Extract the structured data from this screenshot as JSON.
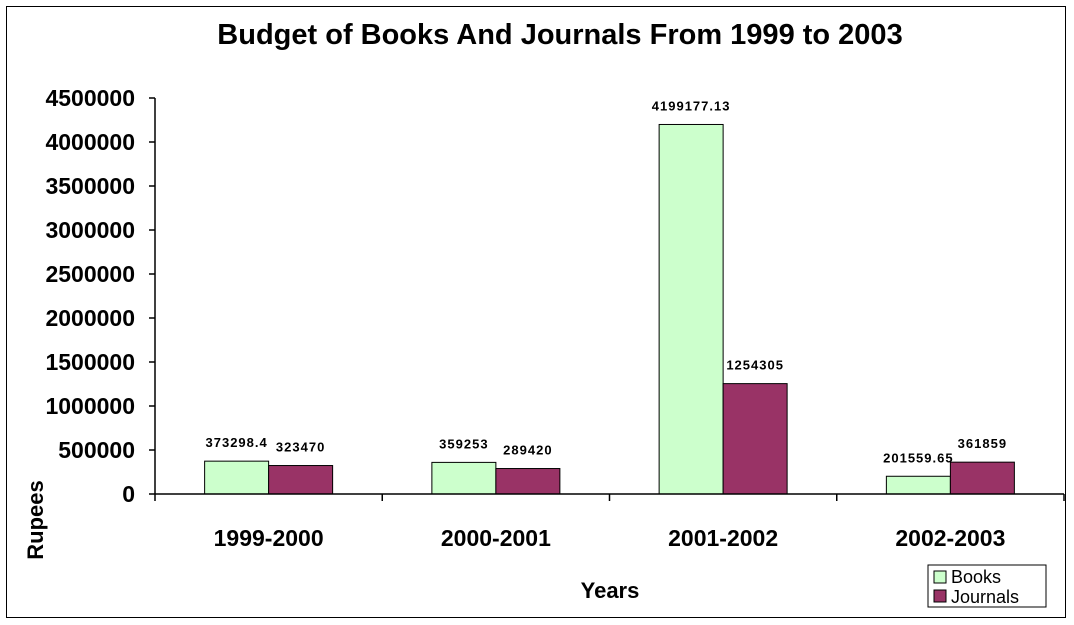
{
  "chart_data": {
    "type": "bar",
    "title": "Budget of Books And Journals From 1999 to 2003",
    "xlabel": "Years",
    "ylabel": "Rupees",
    "categories": [
      "1999-2000",
      "2000-2001",
      "2001-2002",
      "2002-2003"
    ],
    "series": [
      {
        "name": "Books",
        "color": "#ccffcc",
        "values": [
          373298.4,
          359253,
          4199177.13,
          201559.65
        ],
        "labels": [
          "373298.4",
          "359253",
          "4199177.13",
          "201559.65"
        ]
      },
      {
        "name": "Journals",
        "color": "#993366",
        "values": [
          323470,
          289420,
          1254305,
          361859
        ],
        "labels": [
          "323470",
          "289420",
          "1254305",
          "361859"
        ]
      }
    ],
    "ylim": [
      0,
      4500000
    ],
    "yticks": [
      "0",
      "500000",
      "1000000",
      "1500000",
      "2000000",
      "2500000",
      "3000000",
      "3500000",
      "4000000",
      "4500000"
    ],
    "grid": false,
    "legend_position": "bottom-right"
  }
}
